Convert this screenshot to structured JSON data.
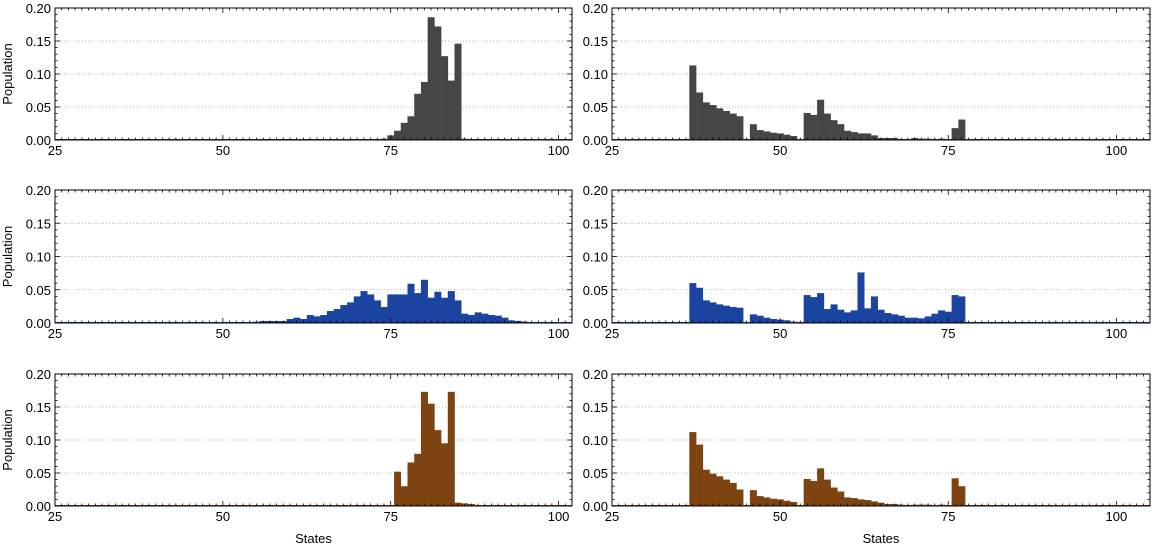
{
  "figure": {
    "layout": "3 rows x 2 columns",
    "colors": {
      "gray": "#464646",
      "blue": "#1a44a0",
      "brown": "#7d4412",
      "grid": "#9a9a9a",
      "axis": "#000000"
    }
  },
  "chart_data": [
    {
      "type": "bar",
      "id": "r0c0",
      "row": 0,
      "col": 0,
      "color_key": "gray",
      "ylabel": "Population",
      "xlabel": "",
      "xlim": [
        25,
        102
      ],
      "ylim": [
        0,
        0.2
      ],
      "xticks": [
        "25",
        "50",
        "75",
        "100"
      ],
      "yticks": [
        "0.00",
        "0.05",
        "0.10",
        "0.15",
        "0.20"
      ],
      "x": [
        74,
        75,
        76,
        77,
        78,
        79,
        80,
        81,
        82,
        83,
        84,
        85,
        86
      ],
      "values": [
        0.002,
        0.007,
        0.014,
        0.026,
        0.036,
        0.07,
        0.088,
        0.186,
        0.172,
        0.127,
        0.09,
        0.146,
        0.002
      ]
    },
    {
      "type": "bar",
      "id": "r0c1",
      "row": 0,
      "col": 1,
      "color_key": "gray",
      "ylabel": "",
      "xlabel": "",
      "xlim": [
        25,
        105
      ],
      "ylim": [
        0,
        0.2
      ],
      "xticks": [
        "25",
        "50",
        "75",
        "100"
      ],
      "yticks": [
        "0.00",
        "0.05",
        "0.10",
        "0.15",
        "0.20"
      ],
      "x": [
        37,
        38,
        39,
        40,
        41,
        42,
        43,
        44,
        45,
        46,
        47,
        48,
        49,
        50,
        51,
        52,
        53,
        54,
        55,
        56,
        57,
        58,
        59,
        60,
        61,
        62,
        63,
        64,
        65,
        66,
        67,
        68,
        69,
        70,
        71,
        72,
        73,
        74,
        75,
        76,
        77
      ],
      "values": [
        0.113,
        0.072,
        0.057,
        0.053,
        0.048,
        0.044,
        0.04,
        0.036,
        0.0,
        0.024,
        0.015,
        0.013,
        0.011,
        0.01,
        0.008,
        0.006,
        0.0,
        0.041,
        0.038,
        0.061,
        0.04,
        0.03,
        0.024,
        0.014,
        0.012,
        0.01,
        0.01,
        0.007,
        0.003,
        0.003,
        0.003,
        0.001,
        0.001,
        0.003,
        0.002,
        0.002,
        0.0,
        0.002,
        0.001,
        0.018,
        0.031
      ]
    },
    {
      "type": "bar",
      "id": "r1c0",
      "row": 1,
      "col": 0,
      "color_key": "blue",
      "ylabel": "Population",
      "xlabel": "",
      "xlim": [
        25,
        102
      ],
      "ylim": [
        0,
        0.2
      ],
      "xticks": [
        "25",
        "50",
        "75",
        "100"
      ],
      "yticks": [
        "0.00",
        "0.05",
        "0.10",
        "0.15",
        "0.20"
      ],
      "x": [
        43,
        44,
        45,
        46,
        47,
        48,
        49,
        50,
        51,
        52,
        53,
        54,
        55,
        56,
        57,
        58,
        59,
        60,
        61,
        62,
        63,
        64,
        65,
        66,
        67,
        68,
        69,
        70,
        71,
        72,
        73,
        74,
        75,
        76,
        77,
        78,
        79,
        80,
        81,
        82,
        83,
        84,
        85,
        86,
        87,
        88,
        89,
        90,
        91,
        92,
        93,
        94,
        95,
        96,
        97,
        98,
        99
      ],
      "values": [
        0.001,
        0.001,
        0.001,
        0.001,
        0.001,
        0.001,
        0.001,
        0.001,
        0.001,
        0.001,
        0.001,
        0.001,
        0.002,
        0.003,
        0.003,
        0.003,
        0.003,
        0.006,
        0.008,
        0.006,
        0.012,
        0.01,
        0.012,
        0.018,
        0.021,
        0.027,
        0.031,
        0.04,
        0.048,
        0.043,
        0.034,
        0.024,
        0.043,
        0.043,
        0.043,
        0.059,
        0.045,
        0.065,
        0.038,
        0.047,
        0.038,
        0.048,
        0.034,
        0.014,
        0.012,
        0.016,
        0.014,
        0.012,
        0.011,
        0.008,
        0.004,
        0.003,
        0.002,
        0.001,
        0.001,
        0.001,
        0.001
      ]
    },
    {
      "type": "bar",
      "id": "r1c1",
      "row": 1,
      "col": 1,
      "color_key": "blue",
      "ylabel": "",
      "xlabel": "",
      "xlim": [
        25,
        105
      ],
      "ylim": [
        0,
        0.2
      ],
      "xticks": [
        "25",
        "50",
        "75",
        "100"
      ],
      "yticks": [
        "0.00",
        "0.05",
        "0.10",
        "0.15",
        "0.20"
      ],
      "x": [
        37,
        38,
        39,
        40,
        41,
        42,
        43,
        44,
        45,
        46,
        47,
        48,
        49,
        50,
        51,
        52,
        53,
        54,
        55,
        56,
        57,
        58,
        59,
        60,
        61,
        62,
        63,
        64,
        65,
        66,
        67,
        68,
        69,
        70,
        71,
        72,
        73,
        74,
        75,
        76,
        77
      ],
      "values": [
        0.06,
        0.053,
        0.034,
        0.031,
        0.028,
        0.026,
        0.024,
        0.023,
        0.0,
        0.013,
        0.011,
        0.008,
        0.006,
        0.005,
        0.004,
        0.002,
        0.0,
        0.042,
        0.039,
        0.045,
        0.021,
        0.028,
        0.02,
        0.016,
        0.019,
        0.076,
        0.022,
        0.04,
        0.02,
        0.015,
        0.013,
        0.011,
        0.008,
        0.008,
        0.007,
        0.01,
        0.014,
        0.019,
        0.017,
        0.042,
        0.04
      ]
    },
    {
      "type": "bar",
      "id": "r2c0",
      "row": 2,
      "col": 0,
      "color_key": "brown",
      "ylabel": "Population",
      "xlabel": "States",
      "xlim": [
        25,
        102
      ],
      "ylim": [
        0,
        0.2
      ],
      "xticks": [
        "25",
        "50",
        "75",
        "100"
      ],
      "yticks": [
        "0.00",
        "0.05",
        "0.10",
        "0.15",
        "0.20"
      ],
      "x": [
        76,
        77,
        78,
        79,
        80,
        81,
        82,
        83,
        84,
        85,
        86,
        87,
        88
      ],
      "values": [
        0.052,
        0.03,
        0.066,
        0.079,
        0.173,
        0.155,
        0.115,
        0.095,
        0.173,
        0.005,
        0.004,
        0.003,
        0.001
      ]
    },
    {
      "type": "bar",
      "id": "r2c1",
      "row": 2,
      "col": 1,
      "color_key": "brown",
      "ylabel": "",
      "xlabel": "States",
      "xlim": [
        25,
        105
      ],
      "ylim": [
        0,
        0.2
      ],
      "xticks": [
        "25",
        "50",
        "75",
        "100"
      ],
      "yticks": [
        "0.00",
        "0.05",
        "0.10",
        "0.15",
        "0.20"
      ],
      "x": [
        37,
        38,
        39,
        40,
        41,
        42,
        43,
        44,
        45,
        46,
        47,
        48,
        49,
        50,
        51,
        52,
        53,
        54,
        55,
        56,
        57,
        58,
        59,
        60,
        61,
        62,
        63,
        64,
        65,
        66,
        67,
        68,
        69,
        70,
        71,
        72,
        73,
        74,
        75,
        76,
        77
      ],
      "values": [
        0.112,
        0.093,
        0.055,
        0.049,
        0.045,
        0.04,
        0.035,
        0.025,
        0.0,
        0.024,
        0.015,
        0.013,
        0.011,
        0.01,
        0.008,
        0.006,
        0.0,
        0.041,
        0.038,
        0.057,
        0.04,
        0.028,
        0.022,
        0.013,
        0.012,
        0.01,
        0.009,
        0.007,
        0.005,
        0.003,
        0.003,
        0.002,
        0.001,
        0.002,
        0.002,
        0.002,
        0.0,
        0.002,
        0.001,
        0.042,
        0.03
      ]
    }
  ]
}
